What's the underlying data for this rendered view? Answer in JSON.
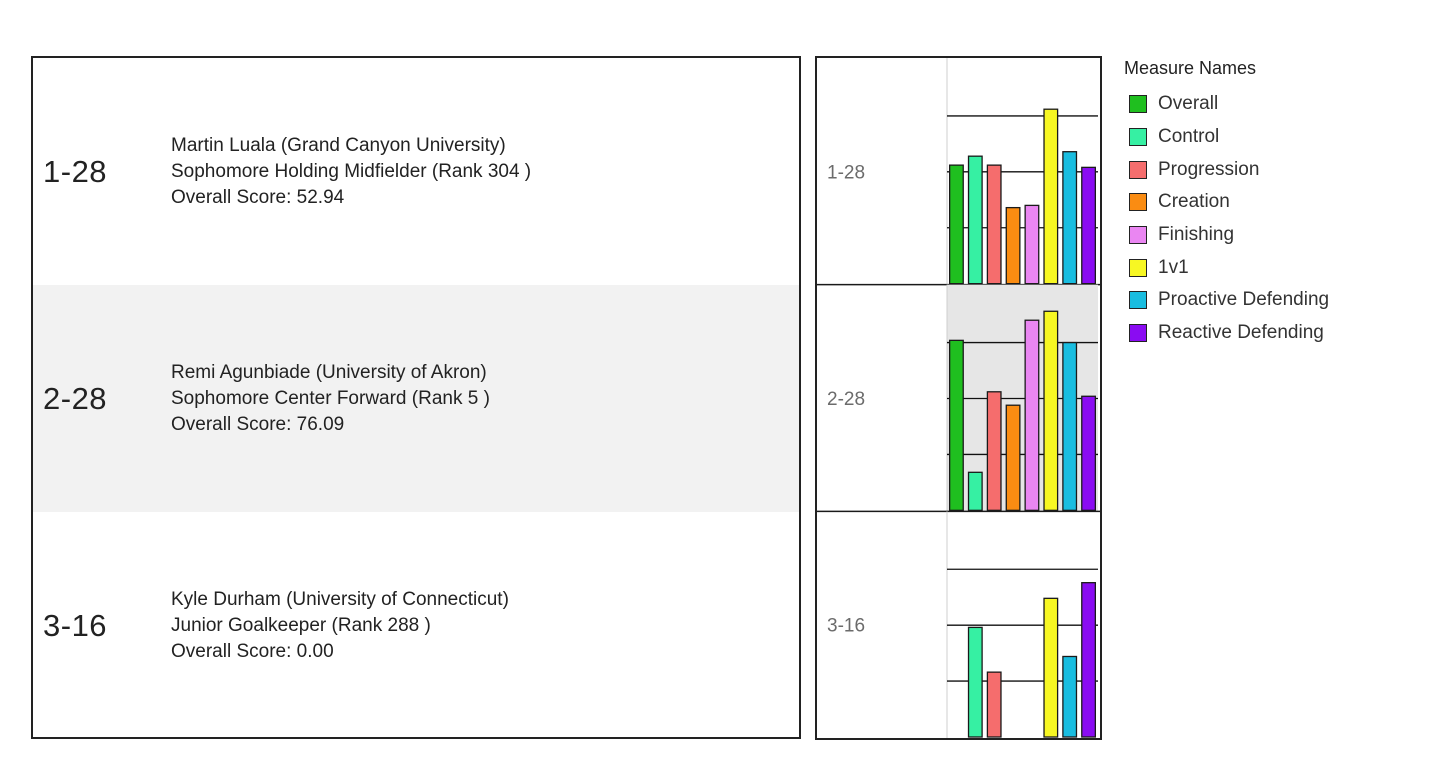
{
  "players": [
    {
      "pick": "1-28",
      "name_line": "Martin Luala (Grand Canyon University)",
      "position_line": "Sophomore Holding Midfielder  (Rank 304 )",
      "score_line": "Overall Score: 52.94"
    },
    {
      "pick": "2-28",
      "name_line": "Remi Agunbiade (University of Akron)",
      "position_line": "Sophomore Center Forward  (Rank 5 )",
      "score_line": "Overall Score: 76.09"
    },
    {
      "pick": "3-16",
      "name_line": "Kyle Durham (University of Connecticut)",
      "position_line": "Junior Goalkeeper  (Rank 288 )",
      "score_line": "Overall Score: 0.00"
    }
  ],
  "legend": {
    "title": "Measure Names",
    "items": [
      {
        "label": "Overall",
        "color": "#1fbf1f"
      },
      {
        "label": "Control",
        "color": "#36f0a3"
      },
      {
        "label": "Progression",
        "color": "#f56d6d"
      },
      {
        "label": "Creation",
        "color": "#fa8c12"
      },
      {
        "label": "Finishing",
        "color": "#ea86f2"
      },
      {
        "label": "1v1",
        "color": "#f7f723"
      },
      {
        "label": "Proactive Defending",
        "color": "#19bde0"
      },
      {
        "label": "Reactive Defending",
        "color": "#8a0cf2"
      }
    ]
  },
  "chart_data": {
    "type": "bar",
    "title": "",
    "xlabel": "",
    "ylabel": "",
    "ylim": [
      0,
      100
    ],
    "categories": [
      "Overall",
      "Control",
      "Progression",
      "Creation",
      "Finishing",
      "1v1",
      "Proactive Defending",
      "Reactive Defending"
    ],
    "gridlines": [
      25,
      50,
      75
    ],
    "series": [
      {
        "name": "1-28",
        "values": [
          53,
          57,
          53,
          34,
          35,
          78,
          59,
          52
        ]
      },
      {
        "name": "2-28",
        "values": [
          76,
          17,
          53,
          47,
          85,
          89,
          75,
          51
        ]
      },
      {
        "name": "3-16",
        "values": [
          0,
          49,
          29,
          0,
          0,
          62,
          36,
          69
        ]
      }
    ],
    "colors": [
      "#1fbf1f",
      "#36f0a3",
      "#f56d6d",
      "#fa8c12",
      "#ea86f2",
      "#f7f723",
      "#19bde0",
      "#8a0cf2"
    ]
  }
}
